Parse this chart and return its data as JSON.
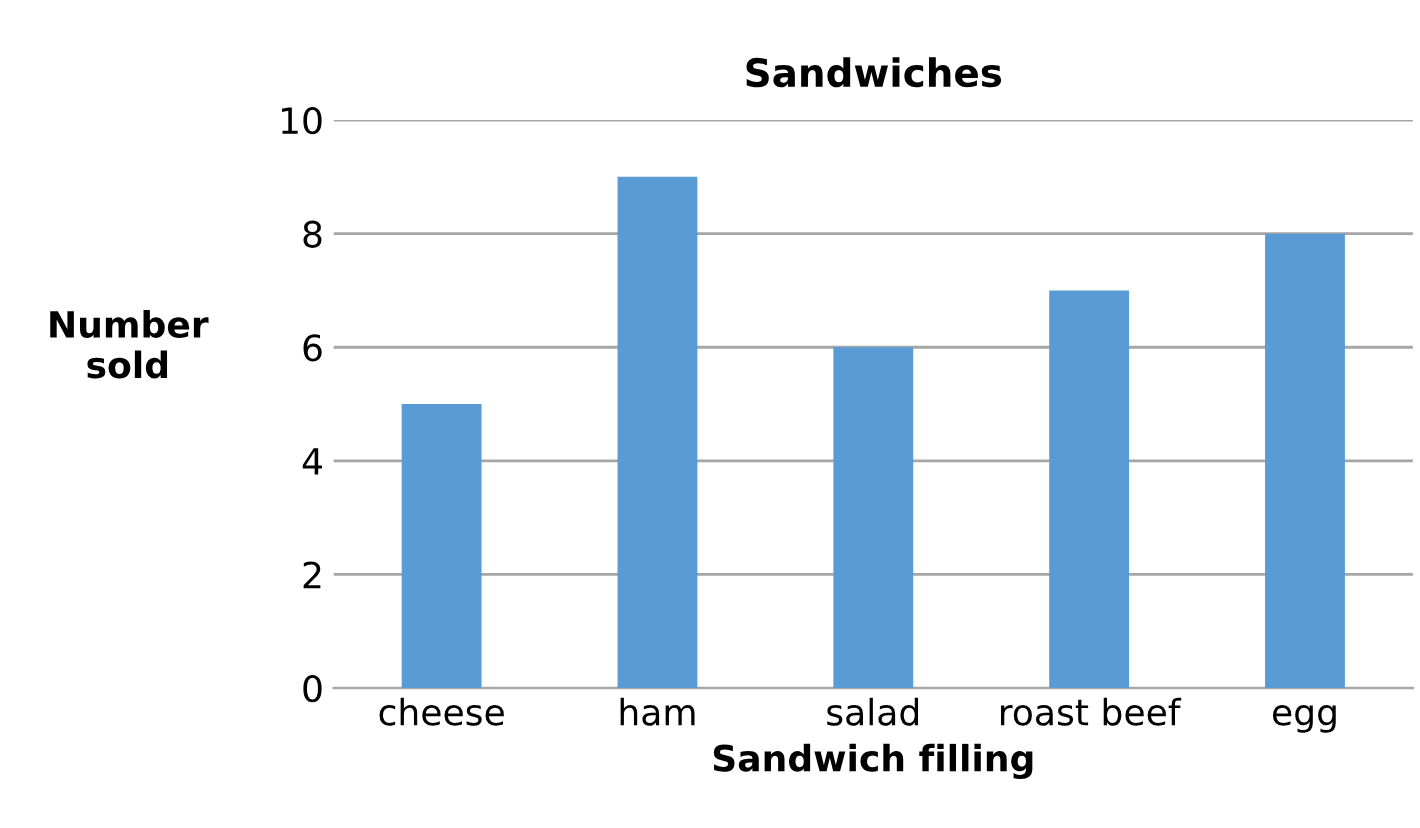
{
  "chart_data": {
    "type": "bar",
    "title": "Sandwiches",
    "xlabel": "Sandwich filling",
    "ylabel": "Number\nsold",
    "categories": [
      "cheese",
      "ham",
      "salad",
      "roast beef",
      "egg"
    ],
    "values": [
      5,
      9,
      6,
      7,
      8
    ],
    "color": "#5b9bd5",
    "ylim": [
      0,
      10
    ],
    "yticks": [
      0,
      2,
      4,
      6,
      8,
      10
    ],
    "grid": "y",
    "legend": false
  }
}
